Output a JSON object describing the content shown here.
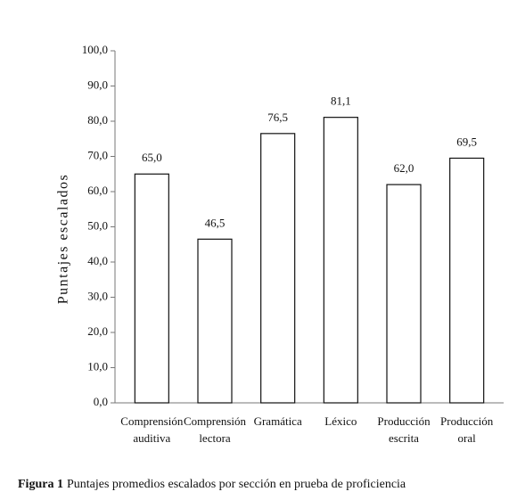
{
  "chart_data": {
    "type": "bar",
    "y_label": "Puntajes escalados",
    "categories": [
      "Comprensión auditiva",
      "Comprensión lectora",
      "Gramática",
      "Léxico",
      "Producción escrita",
      "Producción oral"
    ],
    "values": [
      65.0,
      46.5,
      76.5,
      81.1,
      62.0,
      69.5
    ],
    "value_labels": [
      "65,0",
      "46,5",
      "76,5",
      "81,1",
      "62,0",
      "69,5"
    ],
    "color": "#ffffff",
    "edge_color": "#111111",
    "ylim": [
      0,
      100
    ],
    "yticks": [
      {
        "value": 0,
        "label": "0,0"
      },
      {
        "value": 10,
        "label": "10,0"
      },
      {
        "value": 20,
        "label": "20,0"
      },
      {
        "value": 30,
        "label": "30,0"
      },
      {
        "value": 40,
        "label": "40,0"
      },
      {
        "value": 50,
        "label": "50,0"
      },
      {
        "value": 60,
        "label": "60,0"
      },
      {
        "value": 70,
        "label": "70,0"
      },
      {
        "value": 80,
        "label": "80,0"
      },
      {
        "value": 90,
        "label": "90,0"
      },
      {
        "value": 100,
        "label": "100,0"
      }
    ],
    "grid": false,
    "caption": {
      "label": "Figura 1",
      "text": "Puntajes promedios escalados por sección en prueba de proficiencia"
    }
  }
}
